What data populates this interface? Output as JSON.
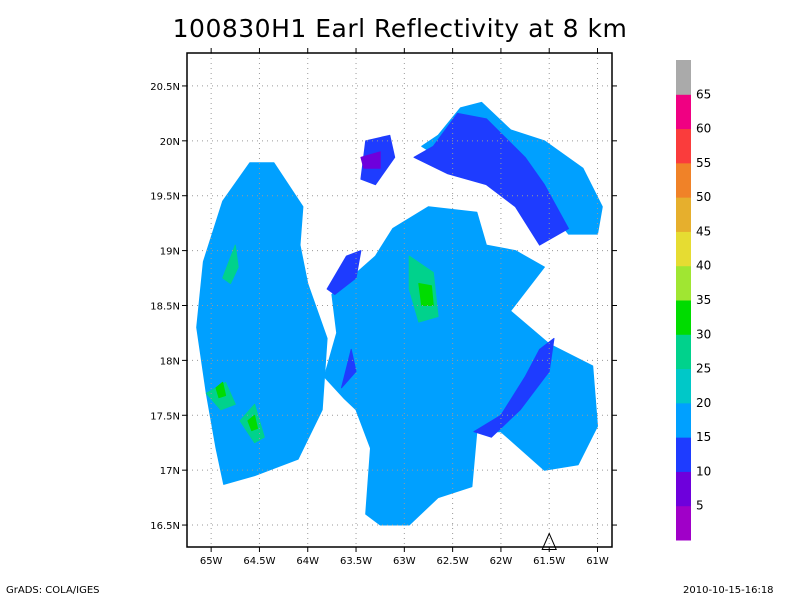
{
  "header": {
    "title": "100830H1 Earl Reflectivity at 8 km"
  },
  "footer": {
    "left": "GrADS: COLA/IGES",
    "right": "2010-10-15-16:18"
  },
  "chart_data": {
    "type": "heatmap",
    "title": "100830H1 Earl Reflectivity at 8 km",
    "xlabel": "",
    "ylabel": "",
    "xlim": [
      -65.25,
      -60.85
    ],
    "ylim": [
      16.3,
      20.8
    ],
    "x_ticks": [
      {
        "value": -65.0,
        "label": "65W"
      },
      {
        "value": -64.5,
        "label": "64.5W"
      },
      {
        "value": -64.0,
        "label": "64W"
      },
      {
        "value": -63.5,
        "label": "63.5W"
      },
      {
        "value": -63.0,
        "label": "63W"
      },
      {
        "value": -62.5,
        "label": "62.5W"
      },
      {
        "value": -62.0,
        "label": "62W"
      },
      {
        "value": -61.5,
        "label": "61.5W"
      },
      {
        "value": -61.0,
        "label": "61W"
      }
    ],
    "y_ticks": [
      {
        "value": 16.5,
        "label": "16.5N"
      },
      {
        "value": 17.0,
        "label": "17N"
      },
      {
        "value": 17.5,
        "label": "17.5N"
      },
      {
        "value": 18.0,
        "label": "18N"
      },
      {
        "value": 18.5,
        "label": "18.5N"
      },
      {
        "value": 19.0,
        "label": "19N"
      },
      {
        "value": 19.5,
        "label": "19.5N"
      },
      {
        "value": 20.0,
        "label": "20N"
      },
      {
        "value": 20.5,
        "label": "20.5N"
      }
    ],
    "grid": true,
    "colorbar": {
      "labels": [
        "5",
        "10",
        "15",
        "20",
        "25",
        "30",
        "35",
        "40",
        "45",
        "50",
        "55",
        "60",
        "65"
      ],
      "colors": [
        "#a000c8",
        "#6e00dc",
        "#1e3cff",
        "#00a0ff",
        "#00c8c8",
        "#00d28c",
        "#00dc00",
        "#a0e632",
        "#e6dc32",
        "#e6af2d",
        "#f08228",
        "#fa3c3c",
        "#f00082",
        "#aaaaaa"
      ]
    },
    "storm_marker": {
      "lon": -61.5,
      "lat": 16.35
    },
    "regions": [
      {
        "level": "15-20",
        "color": "#00a0ff",
        "polygon": [
          [
            -64.87,
            16.87
          ],
          [
            -64.55,
            16.95
          ],
          [
            -64.1,
            17.1
          ],
          [
            -63.85,
            17.55
          ],
          [
            -63.8,
            18.2
          ],
          [
            -64.0,
            18.7
          ],
          [
            -64.08,
            19.05
          ],
          [
            -64.05,
            19.4
          ],
          [
            -64.35,
            19.8
          ],
          [
            -64.6,
            19.8
          ],
          [
            -64.88,
            19.45
          ],
          [
            -65.08,
            18.9
          ],
          [
            -65.15,
            18.3
          ],
          [
            -65.05,
            17.7
          ],
          [
            -64.95,
            17.2
          ]
        ]
      },
      {
        "level": "15-20",
        "color": "#00a0ff",
        "polygon": [
          [
            -63.83,
            17.85
          ],
          [
            -63.7,
            18.25
          ],
          [
            -63.75,
            18.6
          ],
          [
            -63.3,
            18.95
          ],
          [
            -63.12,
            19.2
          ],
          [
            -62.75,
            19.4
          ],
          [
            -62.25,
            19.35
          ],
          [
            -62.15,
            19.05
          ],
          [
            -61.85,
            19.0
          ],
          [
            -61.55,
            18.85
          ],
          [
            -61.9,
            18.45
          ],
          [
            -61.5,
            18.15
          ],
          [
            -61.05,
            17.95
          ],
          [
            -61.0,
            17.4
          ],
          [
            -61.2,
            17.05
          ],
          [
            -61.55,
            17.0
          ],
          [
            -62.0,
            17.35
          ],
          [
            -62.25,
            17.35
          ],
          [
            -62.3,
            16.85
          ],
          [
            -62.65,
            16.75
          ],
          [
            -62.95,
            16.5
          ],
          [
            -63.25,
            16.5
          ],
          [
            -63.4,
            16.6
          ],
          [
            -63.35,
            17.2
          ],
          [
            -63.5,
            17.55
          ],
          [
            -63.62,
            17.65
          ]
        ]
      },
      {
        "level": "15-20",
        "color": "#00a0ff",
        "polygon": [
          [
            -62.82,
            19.95
          ],
          [
            -62.65,
            20.05
          ],
          [
            -62.42,
            20.3
          ],
          [
            -62.2,
            20.35
          ],
          [
            -61.9,
            20.1
          ],
          [
            -61.55,
            20.0
          ],
          [
            -61.15,
            19.75
          ],
          [
            -60.95,
            19.4
          ],
          [
            -61.0,
            19.15
          ],
          [
            -61.3,
            19.15
          ],
          [
            -61.7,
            19.6
          ],
          [
            -62.2,
            19.75
          ],
          [
            -62.55,
            19.8
          ]
        ]
      },
      {
        "level": "10-15",
        "color": "#1e3cff",
        "polygon": [
          [
            -62.9,
            19.85
          ],
          [
            -62.7,
            19.95
          ],
          [
            -62.45,
            20.25
          ],
          [
            -62.15,
            20.2
          ],
          [
            -61.75,
            19.85
          ],
          [
            -61.55,
            19.6
          ],
          [
            -61.3,
            19.2
          ],
          [
            -61.6,
            19.05
          ],
          [
            -61.85,
            19.4
          ],
          [
            -62.15,
            19.6
          ],
          [
            -62.55,
            19.7
          ]
        ]
      },
      {
        "level": "10-15",
        "color": "#1e3cff",
        "polygon": [
          [
            -63.45,
            19.65
          ],
          [
            -63.4,
            20.0
          ],
          [
            -63.15,
            20.05
          ],
          [
            -63.1,
            19.85
          ],
          [
            -63.3,
            19.6
          ]
        ]
      },
      {
        "level": "10-15",
        "color": "#1e3cff",
        "polygon": [
          [
            -63.8,
            18.65
          ],
          [
            -63.6,
            18.95
          ],
          [
            -63.45,
            19.0
          ],
          [
            -63.5,
            18.75
          ],
          [
            -63.72,
            18.6
          ]
        ]
      },
      {
        "level": "10-15",
        "color": "#1e3cff",
        "polygon": [
          [
            -63.65,
            17.75
          ],
          [
            -63.55,
            18.1
          ],
          [
            -63.5,
            17.9
          ]
        ]
      },
      {
        "level": "10-15",
        "color": "#1e3cff",
        "polygon": [
          [
            -62.28,
            17.35
          ],
          [
            -62.0,
            17.5
          ],
          [
            -61.75,
            17.85
          ],
          [
            -61.6,
            18.1
          ],
          [
            -61.45,
            18.2
          ],
          [
            -61.5,
            17.9
          ],
          [
            -61.8,
            17.55
          ],
          [
            -62.1,
            17.3
          ]
        ]
      },
      {
        "level": "5-10",
        "color": "#6e00dc",
        "polygon": [
          [
            -63.45,
            19.85
          ],
          [
            -63.25,
            19.9
          ],
          [
            -63.25,
            19.75
          ],
          [
            -63.42,
            19.75
          ]
        ]
      },
      {
        "level": "25-30",
        "color": "#00d28c",
        "polygon": [
          [
            -64.88,
            18.75
          ],
          [
            -64.75,
            19.05
          ],
          [
            -64.72,
            18.85
          ],
          [
            -64.8,
            18.7
          ]
        ]
      },
      {
        "level": "25-30",
        "color": "#00d28c",
        "polygon": [
          [
            -65.05,
            17.7
          ],
          [
            -64.85,
            17.8
          ],
          [
            -64.75,
            17.6
          ],
          [
            -64.9,
            17.55
          ]
        ]
      },
      {
        "level": "25-30",
        "color": "#00d28c",
        "polygon": [
          [
            -64.7,
            17.45
          ],
          [
            -64.55,
            17.6
          ],
          [
            -64.45,
            17.3
          ],
          [
            -64.55,
            17.25
          ]
        ]
      },
      {
        "level": "25-30",
        "color": "#00d28c",
        "polygon": [
          [
            -62.95,
            18.95
          ],
          [
            -62.7,
            18.8
          ],
          [
            -62.65,
            18.4
          ],
          [
            -62.85,
            18.35
          ],
          [
            -62.95,
            18.65
          ]
        ]
      },
      {
        "level": "30-35",
        "color": "#00dc00",
        "polygon": [
          [
            -62.85,
            18.7
          ],
          [
            -62.72,
            18.68
          ],
          [
            -62.7,
            18.5
          ],
          [
            -62.82,
            18.5
          ]
        ]
      },
      {
        "level": "30-35",
        "color": "#00dc00",
        "polygon": [
          [
            -64.95,
            17.75
          ],
          [
            -64.88,
            17.8
          ],
          [
            -64.85,
            17.68
          ],
          [
            -64.92,
            17.66
          ]
        ]
      },
      {
        "level": "30-35",
        "color": "#00dc00",
        "polygon": [
          [
            -64.62,
            17.45
          ],
          [
            -64.55,
            17.5
          ],
          [
            -64.52,
            17.38
          ],
          [
            -64.58,
            17.36
          ]
        ]
      }
    ]
  }
}
